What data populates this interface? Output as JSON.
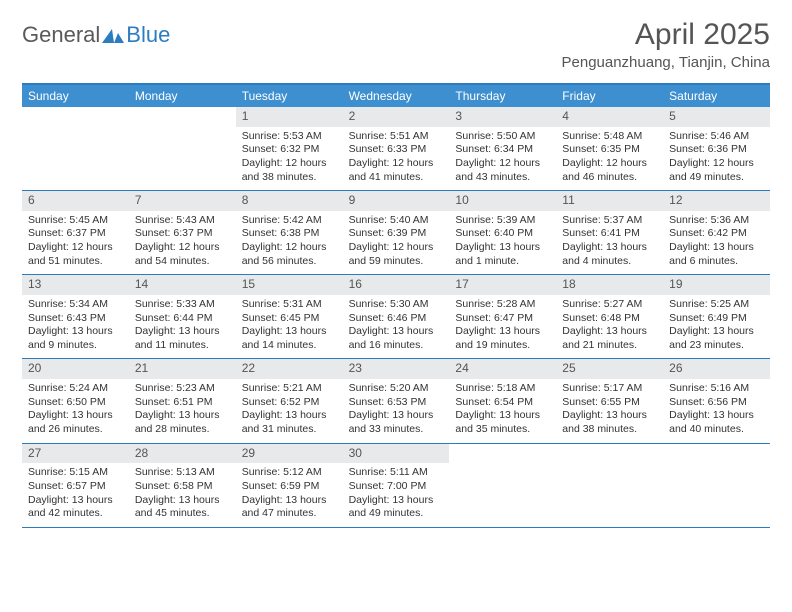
{
  "brand": {
    "part1": "General",
    "part2": "Blue"
  },
  "title": "April 2025",
  "location": "Penguanzhuang, Tianjin, China",
  "colors": {
    "header_bg": "#3d8fcf",
    "border": "#2e7cc0",
    "daynum_bg": "#e8e9ea",
    "text": "#333333"
  },
  "day_names": [
    "Sunday",
    "Monday",
    "Tuesday",
    "Wednesday",
    "Thursday",
    "Friday",
    "Saturday"
  ],
  "weeks": [
    [
      null,
      null,
      {
        "n": "1",
        "sr": "Sunrise: 5:53 AM",
        "ss": "Sunset: 6:32 PM",
        "dl1": "Daylight: 12 hours",
        "dl2": "and 38 minutes."
      },
      {
        "n": "2",
        "sr": "Sunrise: 5:51 AM",
        "ss": "Sunset: 6:33 PM",
        "dl1": "Daylight: 12 hours",
        "dl2": "and 41 minutes."
      },
      {
        "n": "3",
        "sr": "Sunrise: 5:50 AM",
        "ss": "Sunset: 6:34 PM",
        "dl1": "Daylight: 12 hours",
        "dl2": "and 43 minutes."
      },
      {
        "n": "4",
        "sr": "Sunrise: 5:48 AM",
        "ss": "Sunset: 6:35 PM",
        "dl1": "Daylight: 12 hours",
        "dl2": "and 46 minutes."
      },
      {
        "n": "5",
        "sr": "Sunrise: 5:46 AM",
        "ss": "Sunset: 6:36 PM",
        "dl1": "Daylight: 12 hours",
        "dl2": "and 49 minutes."
      }
    ],
    [
      {
        "n": "6",
        "sr": "Sunrise: 5:45 AM",
        "ss": "Sunset: 6:37 PM",
        "dl1": "Daylight: 12 hours",
        "dl2": "and 51 minutes."
      },
      {
        "n": "7",
        "sr": "Sunrise: 5:43 AM",
        "ss": "Sunset: 6:37 PM",
        "dl1": "Daylight: 12 hours",
        "dl2": "and 54 minutes."
      },
      {
        "n": "8",
        "sr": "Sunrise: 5:42 AM",
        "ss": "Sunset: 6:38 PM",
        "dl1": "Daylight: 12 hours",
        "dl2": "and 56 minutes."
      },
      {
        "n": "9",
        "sr": "Sunrise: 5:40 AM",
        "ss": "Sunset: 6:39 PM",
        "dl1": "Daylight: 12 hours",
        "dl2": "and 59 minutes."
      },
      {
        "n": "10",
        "sr": "Sunrise: 5:39 AM",
        "ss": "Sunset: 6:40 PM",
        "dl1": "Daylight: 13 hours",
        "dl2": "and 1 minute."
      },
      {
        "n": "11",
        "sr": "Sunrise: 5:37 AM",
        "ss": "Sunset: 6:41 PM",
        "dl1": "Daylight: 13 hours",
        "dl2": "and 4 minutes."
      },
      {
        "n": "12",
        "sr": "Sunrise: 5:36 AM",
        "ss": "Sunset: 6:42 PM",
        "dl1": "Daylight: 13 hours",
        "dl2": "and 6 minutes."
      }
    ],
    [
      {
        "n": "13",
        "sr": "Sunrise: 5:34 AM",
        "ss": "Sunset: 6:43 PM",
        "dl1": "Daylight: 13 hours",
        "dl2": "and 9 minutes."
      },
      {
        "n": "14",
        "sr": "Sunrise: 5:33 AM",
        "ss": "Sunset: 6:44 PM",
        "dl1": "Daylight: 13 hours",
        "dl2": "and 11 minutes."
      },
      {
        "n": "15",
        "sr": "Sunrise: 5:31 AM",
        "ss": "Sunset: 6:45 PM",
        "dl1": "Daylight: 13 hours",
        "dl2": "and 14 minutes."
      },
      {
        "n": "16",
        "sr": "Sunrise: 5:30 AM",
        "ss": "Sunset: 6:46 PM",
        "dl1": "Daylight: 13 hours",
        "dl2": "and 16 minutes."
      },
      {
        "n": "17",
        "sr": "Sunrise: 5:28 AM",
        "ss": "Sunset: 6:47 PM",
        "dl1": "Daylight: 13 hours",
        "dl2": "and 19 minutes."
      },
      {
        "n": "18",
        "sr": "Sunrise: 5:27 AM",
        "ss": "Sunset: 6:48 PM",
        "dl1": "Daylight: 13 hours",
        "dl2": "and 21 minutes."
      },
      {
        "n": "19",
        "sr": "Sunrise: 5:25 AM",
        "ss": "Sunset: 6:49 PM",
        "dl1": "Daylight: 13 hours",
        "dl2": "and 23 minutes."
      }
    ],
    [
      {
        "n": "20",
        "sr": "Sunrise: 5:24 AM",
        "ss": "Sunset: 6:50 PM",
        "dl1": "Daylight: 13 hours",
        "dl2": "and 26 minutes."
      },
      {
        "n": "21",
        "sr": "Sunrise: 5:23 AM",
        "ss": "Sunset: 6:51 PM",
        "dl1": "Daylight: 13 hours",
        "dl2": "and 28 minutes."
      },
      {
        "n": "22",
        "sr": "Sunrise: 5:21 AM",
        "ss": "Sunset: 6:52 PM",
        "dl1": "Daylight: 13 hours",
        "dl2": "and 31 minutes."
      },
      {
        "n": "23",
        "sr": "Sunrise: 5:20 AM",
        "ss": "Sunset: 6:53 PM",
        "dl1": "Daylight: 13 hours",
        "dl2": "and 33 minutes."
      },
      {
        "n": "24",
        "sr": "Sunrise: 5:18 AM",
        "ss": "Sunset: 6:54 PM",
        "dl1": "Daylight: 13 hours",
        "dl2": "and 35 minutes."
      },
      {
        "n": "25",
        "sr": "Sunrise: 5:17 AM",
        "ss": "Sunset: 6:55 PM",
        "dl1": "Daylight: 13 hours",
        "dl2": "and 38 minutes."
      },
      {
        "n": "26",
        "sr": "Sunrise: 5:16 AM",
        "ss": "Sunset: 6:56 PM",
        "dl1": "Daylight: 13 hours",
        "dl2": "and 40 minutes."
      }
    ],
    [
      {
        "n": "27",
        "sr": "Sunrise: 5:15 AM",
        "ss": "Sunset: 6:57 PM",
        "dl1": "Daylight: 13 hours",
        "dl2": "and 42 minutes."
      },
      {
        "n": "28",
        "sr": "Sunrise: 5:13 AM",
        "ss": "Sunset: 6:58 PM",
        "dl1": "Daylight: 13 hours",
        "dl2": "and 45 minutes."
      },
      {
        "n": "29",
        "sr": "Sunrise: 5:12 AM",
        "ss": "Sunset: 6:59 PM",
        "dl1": "Daylight: 13 hours",
        "dl2": "and 47 minutes."
      },
      {
        "n": "30",
        "sr": "Sunrise: 5:11 AM",
        "ss": "Sunset: 7:00 PM",
        "dl1": "Daylight: 13 hours",
        "dl2": "and 49 minutes."
      },
      null,
      null,
      null
    ]
  ]
}
